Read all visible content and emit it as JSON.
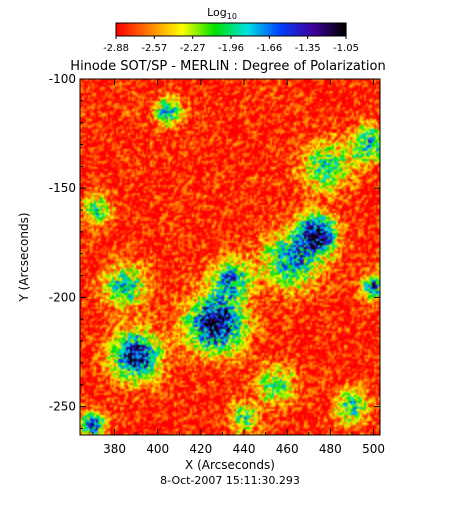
{
  "chart_data": {
    "type": "heatmap",
    "title": "Hinode SOT/SP - MERLIN : Degree of Polarization",
    "colorbar": {
      "label": "Log",
      "label_subscript": "10",
      "tick_labels": [
        "-2.88",
        "-2.57",
        "-2.27",
        "-1.96",
        "-1.66",
        "-1.35",
        "-1.05"
      ],
      "range": [
        -2.88,
        -1.05
      ],
      "colors": [
        "#ff0000",
        "#ff8000",
        "#ffff00",
        "#00e000",
        "#00e0e0",
        "#0040ff",
        "#4000a0",
        "#000000"
      ]
    },
    "xlabel": "X (Arcseconds)",
    "ylabel": "Y (Arcseconds)",
    "xlim": [
      364,
      503
    ],
    "ylim": [
      -263,
      -100
    ],
    "xticks": [
      380,
      400,
      420,
      440,
      460,
      480,
      500
    ],
    "yticks": [
      -100,
      -150,
      -200,
      -250
    ],
    "timestamp": "8-Oct-2007 15:11:30.293",
    "field": {
      "background_level": -2.85,
      "polarized_regions": [
        {
          "x": 427,
          "y": -212,
          "peak": -1.2,
          "radius": 12
        },
        {
          "x": 474,
          "y": -171,
          "peak": -1.25,
          "radius": 8
        },
        {
          "x": 390,
          "y": -227,
          "peak": -1.3,
          "radius": 10
        },
        {
          "x": 434,
          "y": -192,
          "peak": -1.7,
          "radius": 8
        },
        {
          "x": 462,
          "y": -183,
          "peak": -1.75,
          "radius": 12
        },
        {
          "x": 385,
          "y": -195,
          "peak": -1.9,
          "radius": 9
        },
        {
          "x": 500,
          "y": -195,
          "peak": -1.6,
          "radius": 5
        },
        {
          "x": 370,
          "y": -258,
          "peak": -1.45,
          "radius": 5
        },
        {
          "x": 405,
          "y": -115,
          "peak": -1.9,
          "radius": 6
        },
        {
          "x": 478,
          "y": -140,
          "peak": -1.95,
          "radius": 10
        },
        {
          "x": 498,
          "y": -130,
          "peak": -1.9,
          "radius": 8
        },
        {
          "x": 455,
          "y": -240,
          "peak": -2.05,
          "radius": 8
        },
        {
          "x": 490,
          "y": -250,
          "peak": -1.95,
          "radius": 7
        },
        {
          "x": 372,
          "y": -160,
          "peak": -2.0,
          "radius": 6
        },
        {
          "x": 440,
          "y": -255,
          "peak": -2.0,
          "radius": 6
        }
      ]
    }
  }
}
